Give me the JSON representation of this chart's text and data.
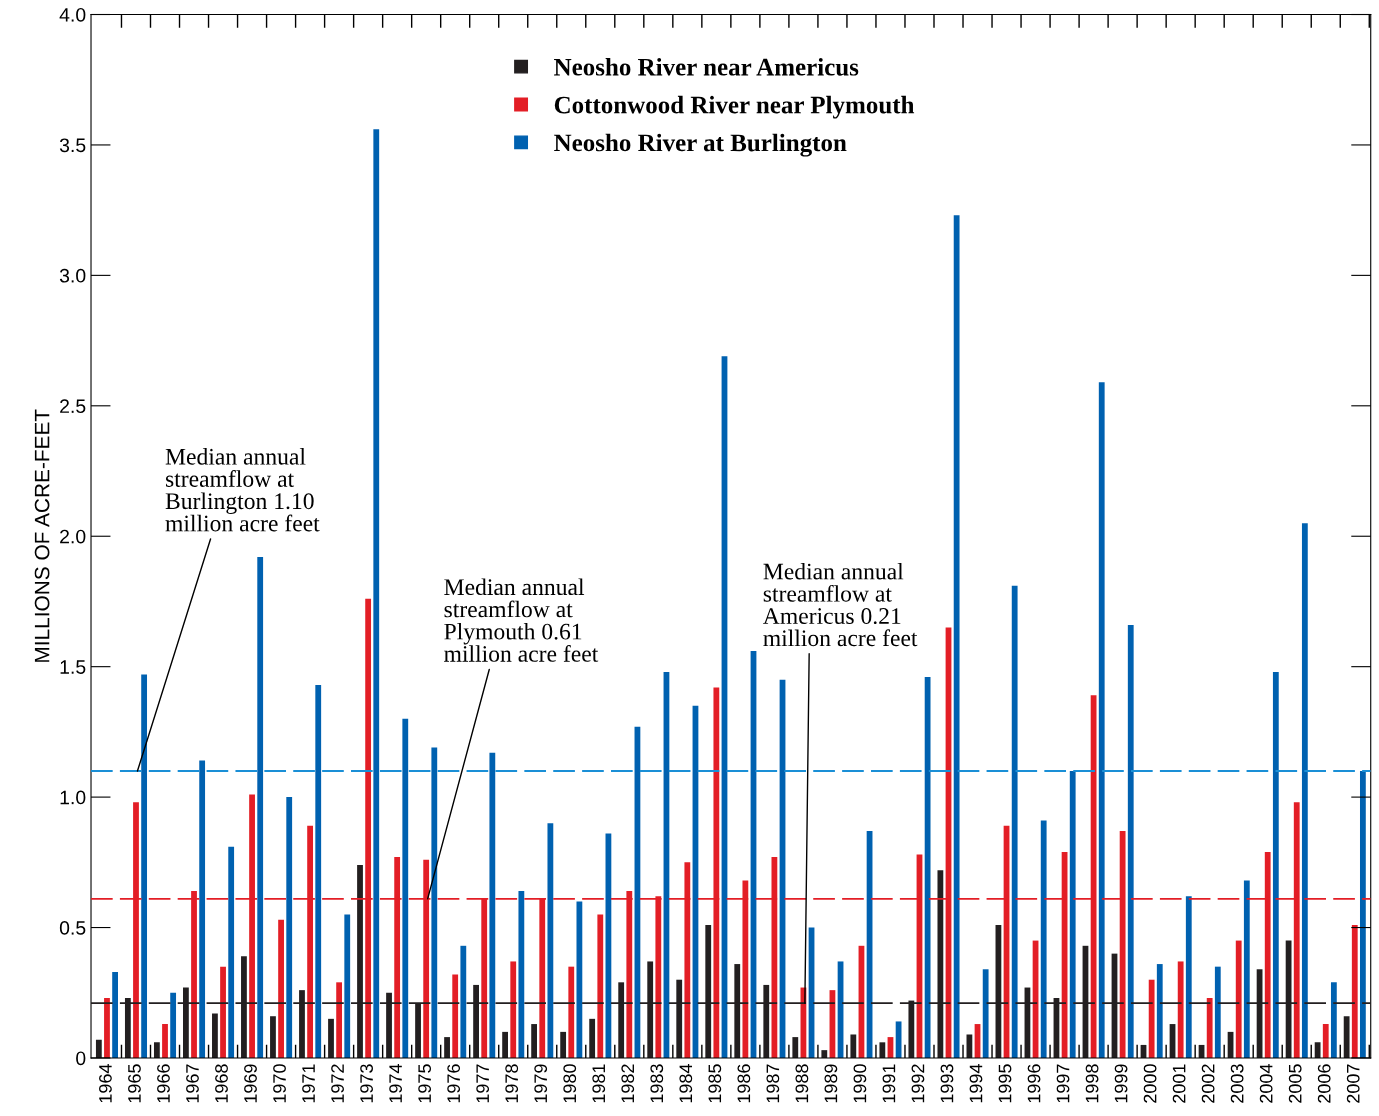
{
  "chart_data": {
    "type": "bar",
    "ylabel": "MILLIONS OF ACRE-FEET",
    "categories": [
      "1964",
      "1965",
      "1966",
      "1967",
      "1968",
      "1969",
      "1970",
      "1971",
      "1972",
      "1973",
      "1974",
      "1975",
      "1976",
      "1977",
      "1978",
      "1979",
      "1980",
      "1981",
      "1982",
      "1983",
      "1984",
      "1985",
      "1986",
      "1987",
      "1988",
      "1989",
      "1990",
      "1991",
      "1992",
      "1993",
      "1994",
      "1995",
      "1996",
      "1997",
      "1998",
      "1999",
      "2000",
      "2001",
      "2002",
      "2003",
      "2004",
      "2005",
      "2006",
      "2007"
    ],
    "series": [
      {
        "name": "Neosho River near Americus",
        "color": "#231f20",
        "values": [
          0.07,
          0.23,
          0.06,
          0.27,
          0.17,
          0.39,
          0.16,
          0.26,
          0.15,
          0.74,
          0.25,
          0.21,
          0.08,
          0.28,
          0.1,
          0.13,
          0.1,
          0.15,
          0.29,
          0.37,
          0.3,
          0.51,
          0.36,
          0.28,
          0.08,
          0.03,
          0.09,
          0.06,
          0.22,
          0.72,
          0.09,
          0.51,
          0.27,
          0.23,
          0.43,
          0.4,
          0.05,
          0.13,
          0.05,
          0.1,
          0.34,
          0.45,
          0.06,
          0.16
        ]
      },
      {
        "name": "Cottonwood River near Plymouth",
        "color": "#e31e26",
        "values": [
          0.23,
          0.98,
          0.13,
          0.64,
          0.35,
          1.01,
          0.53,
          0.89,
          0.29,
          1.76,
          0.77,
          0.76,
          0.32,
          0.61,
          0.37,
          0.61,
          0.35,
          0.55,
          0.64,
          0.62,
          0.75,
          1.42,
          0.68,
          0.77,
          0.27,
          0.26,
          0.43,
          0.08,
          0.78,
          1.65,
          0.13,
          0.89,
          0.45,
          0.79,
          1.39,
          0.87,
          0.3,
          0.37,
          0.23,
          0.45,
          0.79,
          0.98,
          0.13,
          0.51
        ]
      },
      {
        "name": "Neosho River at Burlington",
        "color": "#0061b0",
        "values": [
          0.33,
          1.47,
          0.25,
          1.14,
          0.81,
          1.92,
          1.0,
          1.43,
          0.55,
          3.56,
          1.3,
          1.19,
          0.43,
          1.17,
          0.64,
          0.9,
          0.6,
          0.86,
          1.27,
          1.48,
          1.35,
          2.69,
          1.56,
          1.45,
          0.5,
          0.37,
          0.87,
          0.14,
          1.46,
          3.23,
          0.34,
          1.81,
          0.91,
          1.1,
          2.59,
          1.66,
          0.36,
          0.62,
          0.35,
          0.68,
          1.48,
          2.05,
          0.29,
          1.1
        ]
      }
    ],
    "ylim": [
      0,
      4.0
    ],
    "yticks": [
      0,
      {
        "value": 0.5,
        "label": "0.5"
      },
      {
        "value": 1.0,
        "label": "1.0"
      },
      {
        "value": 1.5,
        "label": "1.5"
      },
      {
        "value": 2.0,
        "label": "2.0"
      },
      {
        "value": 2.5,
        "label": "2.5"
      },
      {
        "value": 3.0,
        "label": "3.0"
      },
      {
        "value": 3.5,
        "label": "3.5"
      },
      {
        "value": 4.0,
        "label": "4.0"
      }
    ],
    "ref_lines": [
      {
        "axis": "y",
        "value": 1.1,
        "color": "#1a8fd6",
        "line_style": "dashed"
      },
      {
        "axis": "y",
        "value": 0.61,
        "color": "#e31e26",
        "line_style": "dashed"
      },
      {
        "axis": "y",
        "value": 0.21,
        "color": "#231f20",
        "line_style": "dashed"
      }
    ],
    "annotations": [
      {
        "text": "Median annual\nstreamflow at\nBurlington 1.10\nmillion acre feet",
        "x": "1965",
        "y": 1.1
      },
      {
        "text": "Median annual\nstreamflow at\nPlymouth 0.61\nmillion acre feet",
        "x": "1975",
        "y": 0.61
      },
      {
        "text": "Median annual\nstreamflow at\nAmericus 0.21\nmillion acre feet",
        "x": "1988",
        "y": 0.21
      }
    ],
    "grid": false,
    "legend": "top"
  }
}
